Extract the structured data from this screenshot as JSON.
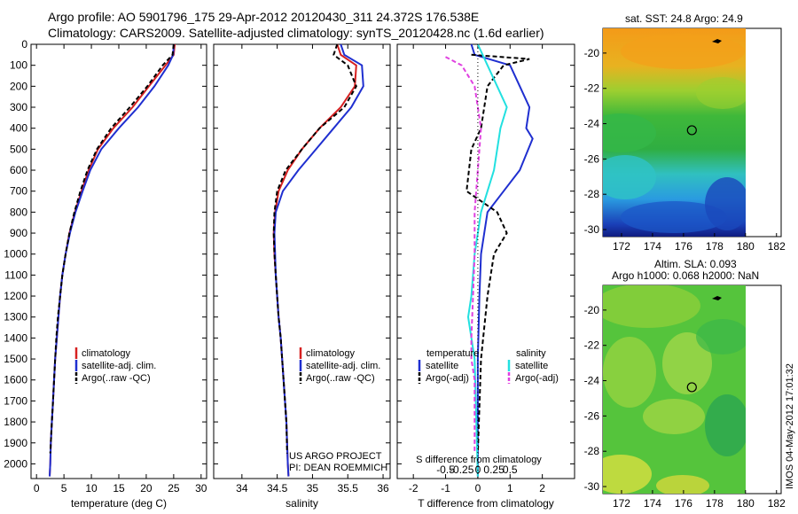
{
  "figure": {
    "title_line1": "Argo profile: AO 5901796_175 29-Apr-2012 20120430_311 24.372S 176.538E",
    "title_line2": "Climatology: CARS2009. Satellite-adjusted climatology: synTS_20120428.nc (1.6d earlier)",
    "project_line1": "US ARGO PROJECT",
    "project_line2": "PI: DEAN ROEMMICH",
    "side_stamp": "IMOS 04-May-2012 17:01:32",
    "colors": {
      "climatology": "#d62020",
      "satellite": "#1f2fd0",
      "argo": "#000000",
      "sat_salinity": "#22e0e0",
      "argo_adj_salinity": "#e040e0"
    }
  },
  "chart_data": [
    {
      "type": "line",
      "name": "temperature-profile",
      "xlabel": "temperature (deg C)",
      "ylabel": "",
      "xlim": [
        -1,
        31
      ],
      "ylim": [
        2070,
        0
      ],
      "xticks": [
        0,
        5,
        10,
        15,
        20,
        25,
        30
      ],
      "yticks": [
        0,
        100,
        200,
        300,
        400,
        500,
        600,
        700,
        800,
        900,
        1000,
        1100,
        1200,
        1300,
        1400,
        1500,
        1600,
        1700,
        1800,
        1900,
        2000
      ],
      "legend": [
        "climatology",
        "satellite-adj. clim.",
        "Argo(..raw -QC)"
      ],
      "series": [
        {
          "name": "climatology",
          "style": "red",
          "points": [
            [
              25.2,
              0
            ],
            [
              25.0,
              50
            ],
            [
              23.5,
              100
            ],
            [
              20.5,
              200
            ],
            [
              17.5,
              300
            ],
            [
              14.0,
              400
            ],
            [
              11.2,
              500
            ],
            [
              9.5,
              600
            ],
            [
              8.2,
              700
            ],
            [
              7.0,
              800
            ],
            [
              6.0,
              900
            ],
            [
              5.3,
              1000
            ],
            [
              4.7,
              1100
            ],
            [
              4.3,
              1200
            ],
            [
              4.0,
              1300
            ],
            [
              3.7,
              1400
            ],
            [
              3.4,
              1500
            ],
            [
              3.2,
              1600
            ],
            [
              3.0,
              1700
            ],
            [
              2.8,
              1800
            ],
            [
              2.6,
              1900
            ],
            [
              2.5,
              2000
            ],
            [
              2.4,
              2060
            ]
          ]
        },
        {
          "name": "satellite-adj. clim.",
          "style": "blue",
          "points": [
            [
              25.0,
              0
            ],
            [
              24.9,
              50
            ],
            [
              24.0,
              100
            ],
            [
              21.5,
              200
            ],
            [
              18.5,
              300
            ],
            [
              15.0,
              400
            ],
            [
              11.8,
              500
            ],
            [
              9.8,
              600
            ],
            [
              8.4,
              700
            ],
            [
              7.1,
              800
            ],
            [
              6.1,
              900
            ],
            [
              5.3,
              1000
            ],
            [
              4.7,
              1100
            ],
            [
              4.3,
              1200
            ],
            [
              4.0,
              1300
            ],
            [
              3.7,
              1400
            ],
            [
              3.4,
              1500
            ],
            [
              3.2,
              1600
            ],
            [
              3.0,
              1700
            ],
            [
              2.8,
              1800
            ],
            [
              2.6,
              1900
            ],
            [
              2.5,
              2000
            ],
            [
              2.4,
              2060
            ]
          ]
        },
        {
          "name": "Argo(..raw -QC)",
          "style": "black",
          "points": [
            [
              25.0,
              0
            ],
            [
              24.8,
              50
            ],
            [
              23.0,
              100
            ],
            [
              20.2,
              200
            ],
            [
              17.0,
              300
            ],
            [
              13.6,
              400
            ],
            [
              11.0,
              500
            ],
            [
              9.3,
              600
            ],
            [
              8.0,
              700
            ],
            [
              6.9,
              800
            ],
            [
              6.0,
              900
            ],
            [
              5.3,
              1000
            ],
            [
              4.7,
              1100
            ],
            [
              4.3,
              1200
            ],
            [
              3.9,
              1300
            ],
            [
              3.6,
              1400
            ],
            [
              3.4,
              1500
            ],
            [
              3.2,
              1600
            ],
            [
              3.0,
              1700
            ],
            [
              2.8,
              1800
            ],
            [
              2.6,
              1900
            ],
            [
              2.5,
              1950
            ]
          ]
        }
      ]
    },
    {
      "type": "line",
      "name": "salinity-profile",
      "xlabel": "salinity",
      "xlim": [
        33.6,
        36.1
      ],
      "ylim": [
        2070,
        0
      ],
      "xticks": [
        34,
        34.5,
        35,
        35.5,
        36
      ],
      "legend": [
        "climatology",
        "satellite-adj. clim.",
        "Argo(..raw -QC)"
      ],
      "series": [
        {
          "name": "climatology",
          "style": "red",
          "points": [
            [
              35.35,
              0
            ],
            [
              35.4,
              50
            ],
            [
              35.62,
              100
            ],
            [
              35.6,
              200
            ],
            [
              35.4,
              300
            ],
            [
              35.1,
              400
            ],
            [
              34.85,
              500
            ],
            [
              34.65,
              600
            ],
            [
              34.52,
              700
            ],
            [
              34.47,
              800
            ],
            [
              34.45,
              900
            ],
            [
              34.46,
              1000
            ],
            [
              34.48,
              1100
            ],
            [
              34.5,
              1200
            ],
            [
              34.52,
              1300
            ],
            [
              34.55,
              1400
            ],
            [
              34.57,
              1500
            ],
            [
              34.59,
              1600
            ],
            [
              34.61,
              1700
            ],
            [
              34.63,
              1800
            ],
            [
              34.64,
              1900
            ],
            [
              34.65,
              2000
            ],
            [
              34.66,
              2060
            ]
          ]
        },
        {
          "name": "satellite-adj. clim.",
          "style": "blue",
          "points": [
            [
              35.4,
              0
            ],
            [
              35.45,
              50
            ],
            [
              35.7,
              100
            ],
            [
              35.72,
              200
            ],
            [
              35.55,
              300
            ],
            [
              35.3,
              400
            ],
            [
              35.05,
              500
            ],
            [
              34.8,
              600
            ],
            [
              34.58,
              700
            ],
            [
              34.48,
              800
            ],
            [
              34.46,
              900
            ],
            [
              34.47,
              1000
            ],
            [
              34.48,
              1100
            ],
            [
              34.5,
              1200
            ],
            [
              34.52,
              1300
            ],
            [
              34.55,
              1400
            ],
            [
              34.57,
              1500
            ],
            [
              34.59,
              1600
            ],
            [
              34.61,
              1700
            ],
            [
              34.63,
              1800
            ],
            [
              34.64,
              1900
            ],
            [
              34.65,
              2000
            ],
            [
              34.66,
              2060
            ]
          ]
        },
        {
          "name": "Argo(..raw -QC)",
          "style": "black",
          "points": [
            [
              35.35,
              0
            ],
            [
              35.3,
              50
            ],
            [
              35.5,
              100
            ],
            [
              35.62,
              200
            ],
            [
              35.45,
              300
            ],
            [
              35.1,
              400
            ],
            [
              34.85,
              500
            ],
            [
              34.62,
              600
            ],
            [
              34.5,
              700
            ],
            [
              34.46,
              800
            ],
            [
              34.45,
              900
            ],
            [
              34.46,
              1000
            ],
            [
              34.48,
              1100
            ],
            [
              34.5,
              1200
            ],
            [
              34.52,
              1300
            ],
            [
              34.55,
              1400
            ],
            [
              34.57,
              1500
            ],
            [
              34.59,
              1600
            ],
            [
              34.61,
              1700
            ],
            [
              34.63,
              1800
            ],
            [
              34.64,
              1950
            ]
          ]
        }
      ]
    },
    {
      "type": "line",
      "name": "difference-profile",
      "xlabel": "T difference from climatology",
      "top_xlabel": "S difference from climatology",
      "xlim": [
        -2.5,
        3.0
      ],
      "ylim": [
        2070,
        0
      ],
      "xticks": [
        -2,
        -1,
        0,
        1,
        2
      ],
      "top_xticks": [
        "-0.5",
        "-0.25",
        "0",
        "0.25",
        "0.5"
      ],
      "legend_headers": [
        "temperature",
        "salinity"
      ],
      "legend": [
        "satellite",
        "Argo(-adj)",
        "satellite",
        "Argo(-adj)"
      ],
      "series": [
        {
          "name": "temperature satellite",
          "style": "blue",
          "points": [
            [
              -0.2,
              0
            ],
            [
              -0.1,
              50
            ],
            [
              1.0,
              100
            ],
            [
              1.3,
              200
            ],
            [
              1.6,
              300
            ],
            [
              1.5,
              400
            ],
            [
              1.7,
              450
            ],
            [
              1.3,
              600
            ],
            [
              0.8,
              700
            ],
            [
              0.3,
              800
            ],
            [
              0.1,
              1000
            ],
            [
              0.05,
              1200
            ],
            [
              0.0,
              1500
            ],
            [
              0.0,
              2060
            ]
          ]
        },
        {
          "name": "temperature Argo(-adj)",
          "style": "blackdash",
          "points": [
            [
              -0.2,
              50
            ],
            [
              1.6,
              70
            ],
            [
              0.8,
              100
            ],
            [
              0.3,
              200
            ],
            [
              0.1,
              400
            ],
            [
              -0.2,
              500
            ],
            [
              -0.35,
              700
            ],
            [
              0.6,
              800
            ],
            [
              0.9,
              900
            ],
            [
              0.5,
              1000
            ],
            [
              0.3,
              1200
            ],
            [
              0.1,
              1500
            ],
            [
              0.0,
              1950
            ]
          ]
        },
        {
          "name": "salinity satellite",
          "style": "cyan",
          "points": [
            [
              0.0,
              0
            ],
            [
              0.3,
              100
            ],
            [
              0.6,
              200
            ],
            [
              0.9,
              300
            ],
            [
              0.7,
              400
            ],
            [
              0.5,
              600
            ],
            [
              0.3,
              700
            ],
            [
              0.1,
              800
            ],
            [
              -0.1,
              1000
            ],
            [
              -0.2,
              1200
            ],
            [
              -0.3,
              1300
            ],
            [
              -0.1,
              1500
            ],
            [
              0.0,
              2060
            ]
          ]
        },
        {
          "name": "salinity Argo(-adj)",
          "style": "magentadash",
          "points": [
            [
              -1.0,
              60
            ],
            [
              -0.5,
              100
            ],
            [
              -0.1,
              200
            ],
            [
              0.0,
              300
            ],
            [
              0.1,
              400
            ],
            [
              0.0,
              600
            ],
            [
              -0.1,
              800
            ],
            [
              -0.1,
              1000
            ],
            [
              -0.15,
              1200
            ],
            [
              -0.2,
              1400
            ],
            [
              -0.2,
              1500
            ],
            [
              -0.1,
              1600
            ],
            [
              -0.1,
              1950
            ]
          ]
        }
      ]
    },
    {
      "type": "heatmap",
      "name": "sst-map",
      "title": "sat. SST: 24.8  Argo: 24.9",
      "xlim": [
        170.8,
        182.3
      ],
      "ylim": [
        -30.4,
        -18.6
      ],
      "data_extent_x": [
        170.8,
        180.0
      ],
      "xticks": [
        172,
        174,
        176,
        178,
        180,
        182
      ],
      "yticks": [
        -20,
        -22,
        -24,
        -26,
        -28,
        -30
      ],
      "marker": [
        176.538,
        -24.372
      ]
    },
    {
      "type": "heatmap",
      "name": "sla-map",
      "title_line1": "Altim. SLA: 0.093",
      "title_line2": "Argo h1000: 0.068  h2000: NaN",
      "xlim": [
        170.8,
        182.3
      ],
      "ylim": [
        -30.4,
        -18.6
      ],
      "data_extent_x": [
        170.8,
        180.0
      ],
      "xticks": [
        172,
        174,
        176,
        178,
        180,
        182
      ],
      "yticks": [
        -20,
        -22,
        -24,
        -26,
        -28,
        -30
      ],
      "marker": [
        176.538,
        -24.372
      ]
    }
  ]
}
